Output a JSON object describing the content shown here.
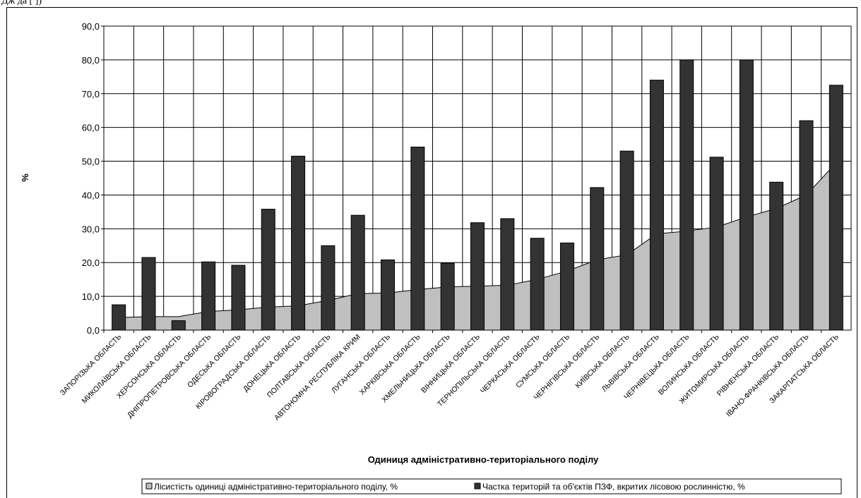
{
  "header_fragment": "Дж   да  [  ])",
  "chart_data": {
    "type": "bar",
    "ylabel": "%",
    "xlabel": "Одиниця адміністративно-територіального поділу",
    "ylim": [
      0,
      90
    ],
    "yticks": [
      "0,0",
      "10,0",
      "20,0",
      "30,0",
      "40,0",
      "50,0",
      "60,0",
      "70,0",
      "80,0",
      "90,0"
    ],
    "grid": true,
    "legend_position": "bottom",
    "categories": [
      "ЗАПОРІЗЬКА ОБЛАСТЬ",
      "МИКОЛАЇВСЬКА ОБЛАСТЬ",
      "ХЕРСОНСЬКА ОБЛАСТЬ",
      "ДНІПРОПЕТРОВСЬКА ОБЛАСТЬ",
      "ОДЕСЬКА ОБЛАСТЬ",
      "КІРОВОГРАДСЬКА ОБЛАСТЬ",
      "ДОНЕЦЬКА ОБЛАСТЬ",
      "ПОЛТАВСЬКА ОБЛАСТЬ",
      "АВТОНОМНА РЕСПУБЛІКА КРИМ",
      "ЛУГАНСЬКА ОБЛАСТЬ",
      "ХАРКІВСЬКА ОБЛАСТЬ",
      "ХМЕЛЬНИЦЬКА ОБЛАСТЬ",
      "ВІННИЦЬКА ОБЛАСТЬ",
      "ТЕРНОПІЛЬСЬКА ОБЛАСТЬ",
      "ЧЕРКАСЬКА ОБЛАСТЬ",
      "СУМСЬКА ОБЛАСТЬ",
      "ЧЕРНІГІВСЬКА ОБЛАСТЬ",
      "КИЇВСЬКА ОБЛАСТЬ",
      "ЛЬВІВСЬКА ОБЛАСТЬ",
      "ЧЕРНІВЕЦЬКА ОБЛАСТЬ",
      "ВОЛИНСЬКА ОБЛАСТЬ",
      "ЖИТОМИРСЬКА ОБЛАСТЬ",
      "РІВНЕНСЬКА ОБЛАСТЬ",
      "ІВАНО-ФРАНКІВСЬКА ОБЛАСТЬ",
      "ЗАКАРПАТСЬКА ОБЛАСТЬ"
    ],
    "series": [
      {
        "name": "Лісистість одиниці адміністративно-територіального поділу, %",
        "type": "area",
        "color": "#c0c0c0",
        "values": [
          3.7,
          4.0,
          4.0,
          5.5,
          6.0,
          6.8,
          7.2,
          8.8,
          10.8,
          11.0,
          12.0,
          12.8,
          13.0,
          13.3,
          15.0,
          17.5,
          20.8,
          22.3,
          28.5,
          29.3,
          30.5,
          33.5,
          36.0,
          40.0,
          49.5
        ]
      },
      {
        "name": "Частка територій та об'єктів ПЗФ, вкритих лісовою рослинністю, %",
        "type": "bar",
        "color": "#333333",
        "values": [
          7.5,
          21.5,
          2.8,
          20.2,
          19.2,
          35.8,
          51.5,
          25.0,
          34.0,
          20.8,
          54.2,
          19.8,
          31.8,
          33.0,
          27.2,
          25.8,
          42.2,
          53.0,
          74.0,
          80.0,
          51.2,
          80.0,
          43.8,
          62.0,
          72.5
        ]
      }
    ]
  }
}
